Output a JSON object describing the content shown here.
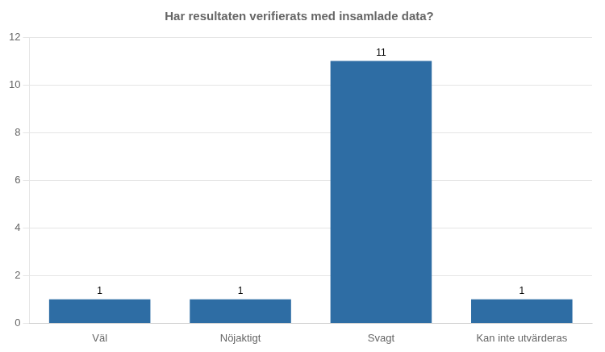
{
  "chart_data": {
    "type": "bar",
    "title": "Har resultaten verifierats med insamlade data?",
    "categories": [
      "Väl",
      "Nöjaktigt",
      "Svagt",
      "Kan inte utvärderas"
    ],
    "values": [
      1,
      1,
      11,
      1
    ],
    "color": "#2E6DA4",
    "ylim": [
      0,
      12
    ],
    "yticks": [
      0,
      2,
      4,
      6,
      8,
      10,
      12
    ],
    "grid": true,
    "data_labels": true
  }
}
